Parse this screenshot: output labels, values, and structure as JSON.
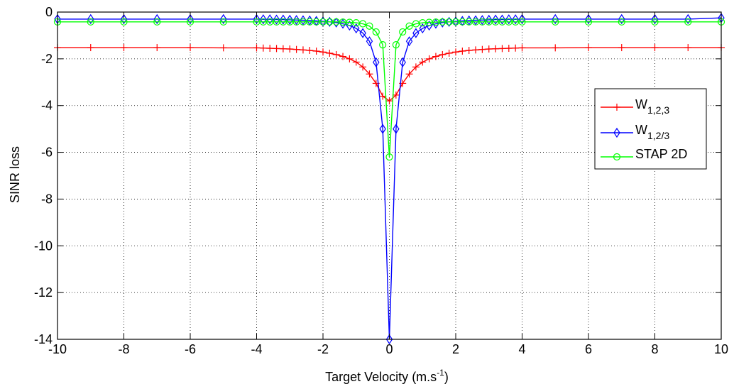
{
  "chart_data": {
    "type": "line",
    "title": "",
    "xlabel": {
      "base": "Target Velocity (m.s",
      "sup": "-1",
      "close": ")"
    },
    "ylabel": "SINR loss",
    "xlim": [
      -10,
      10
    ],
    "ylim": [
      -14,
      0
    ],
    "xticks": [
      -10,
      -8,
      -6,
      -4,
      -2,
      0,
      2,
      4,
      6,
      8,
      10
    ],
    "yticks": [
      0,
      -2,
      -4,
      -6,
      -8,
      -10,
      -12,
      -14
    ],
    "grid": true,
    "legend": {
      "placement": "right"
    },
    "series": [
      {
        "id": "w123",
        "label_main": "W",
        "label_sub": "1,2,3",
        "color": "#ff0000",
        "marker": "plus",
        "x": [
          -10,
          -9,
          -8,
          -7,
          -6,
          -5,
          -4,
          -3.8,
          -3.6,
          -3.4,
          -3.2,
          -3,
          -2.8,
          -2.6,
          -2.4,
          -2.2,
          -2,
          -1.8,
          -1.6,
          -1.4,
          -1.2,
          -1,
          -0.8,
          -0.6,
          -0.4,
          -0.2,
          0,
          0.2,
          0.4,
          0.6,
          0.8,
          1,
          1.2,
          1.4,
          1.6,
          1.8,
          2,
          2.2,
          2.4,
          2.6,
          2.8,
          3,
          3.2,
          3.4,
          3.6,
          3.8,
          4,
          5,
          6,
          7,
          8,
          9,
          10
        ],
        "y": [
          -1.52,
          -1.52,
          -1.52,
          -1.52,
          -1.52,
          -1.53,
          -1.53,
          -1.54,
          -1.55,
          -1.56,
          -1.57,
          -1.58,
          -1.6,
          -1.62,
          -1.64,
          -1.67,
          -1.71,
          -1.76,
          -1.82,
          -1.9,
          -2.0,
          -2.14,
          -2.35,
          -2.65,
          -3.05,
          -3.6,
          -3.8,
          -3.55,
          -3.05,
          -2.65,
          -2.35,
          -2.14,
          -2.0,
          -1.9,
          -1.82,
          -1.76,
          -1.71,
          -1.67,
          -1.64,
          -1.62,
          -1.6,
          -1.58,
          -1.57,
          -1.56,
          -1.55,
          -1.54,
          -1.53,
          -1.53,
          -1.52,
          -1.52,
          -1.52,
          -1.52,
          -1.52
        ]
      },
      {
        "id": "w12_3",
        "label_main": "W",
        "label_sub": "1,2/3",
        "color": "#0000ff",
        "marker": "diamond",
        "x": [
          -10,
          -9,
          -8,
          -7,
          -6,
          -5,
          -4,
          -3.8,
          -3.6,
          -3.4,
          -3.2,
          -3,
          -2.8,
          -2.6,
          -2.4,
          -2.2,
          -2,
          -1.8,
          -1.6,
          -1.4,
          -1.2,
          -1,
          -0.8,
          -0.6,
          -0.4,
          -0.2,
          0,
          0.2,
          0.4,
          0.6,
          0.8,
          1,
          1.2,
          1.4,
          1.6,
          1.8,
          2,
          2.2,
          2.4,
          2.6,
          2.8,
          3,
          3.2,
          3.4,
          3.6,
          3.8,
          4,
          5,
          6,
          7,
          8,
          9,
          10
        ],
        "y": [
          -0.3,
          -0.3,
          -0.3,
          -0.3,
          -0.3,
          -0.3,
          -0.3,
          -0.31,
          -0.31,
          -0.32,
          -0.32,
          -0.33,
          -0.34,
          -0.35,
          -0.36,
          -0.38,
          -0.4,
          -0.42,
          -0.45,
          -0.5,
          -0.58,
          -0.7,
          -0.9,
          -1.25,
          -2.15,
          -5.0,
          -14.0,
          -5.0,
          -2.15,
          -1.25,
          -0.9,
          -0.7,
          -0.58,
          -0.5,
          -0.45,
          -0.42,
          -0.4,
          -0.38,
          -0.36,
          -0.35,
          -0.34,
          -0.33,
          -0.32,
          -0.32,
          -0.31,
          -0.31,
          -0.3,
          -0.3,
          -0.3,
          -0.3,
          -0.3,
          -0.3,
          -0.25
        ]
      },
      {
        "id": "stap2d",
        "label_main": "STAP 2D",
        "label_sub": "",
        "color": "#00ff00",
        "marker": "circle",
        "x": [
          -10,
          -9,
          -8,
          -7,
          -6,
          -5,
          -4,
          -3.8,
          -3.6,
          -3.4,
          -3.2,
          -3,
          -2.8,
          -2.6,
          -2.4,
          -2.2,
          -2,
          -1.8,
          -1.6,
          -1.4,
          -1.2,
          -1,
          -0.8,
          -0.6,
          -0.4,
          -0.2,
          0,
          0.2,
          0.4,
          0.6,
          0.8,
          1,
          1.2,
          1.4,
          1.6,
          1.8,
          2,
          2.2,
          2.4,
          2.6,
          2.8,
          3,
          3.2,
          3.4,
          3.6,
          3.8,
          4,
          5,
          6,
          7,
          8,
          9,
          10
        ],
        "y": [
          -0.42,
          -0.42,
          -0.42,
          -0.42,
          -0.42,
          -0.42,
          -0.42,
          -0.42,
          -0.42,
          -0.42,
          -0.42,
          -0.42,
          -0.42,
          -0.42,
          -0.42,
          -0.42,
          -0.42,
          -0.42,
          -0.42,
          -0.43,
          -0.44,
          -0.46,
          -0.5,
          -0.6,
          -0.85,
          -1.4,
          -6.2,
          -1.4,
          -0.85,
          -0.6,
          -0.5,
          -0.46,
          -0.44,
          -0.43,
          -0.42,
          -0.42,
          -0.42,
          -0.42,
          -0.42,
          -0.42,
          -0.42,
          -0.42,
          -0.42,
          -0.42,
          -0.42,
          -0.42,
          -0.42,
          -0.42,
          -0.42,
          -0.42,
          -0.42,
          -0.42,
          -0.42
        ]
      }
    ]
  }
}
